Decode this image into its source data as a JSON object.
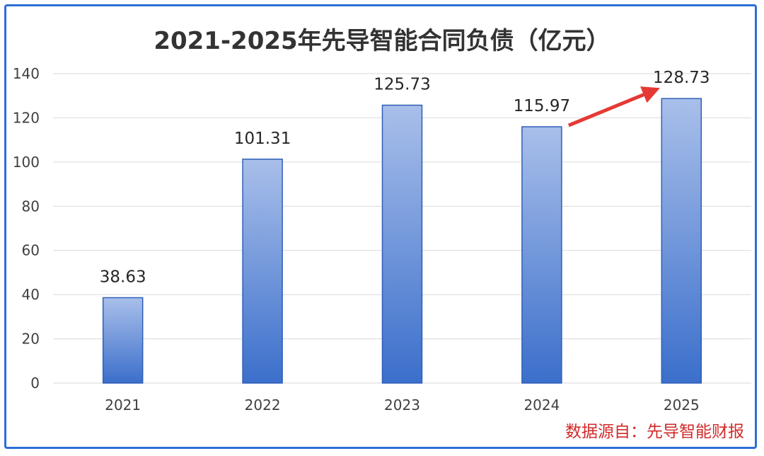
{
  "chart_data": {
    "type": "bar",
    "title": "2021-2025年先导智能合同负债（亿元）",
    "categories": [
      "2021",
      "2022",
      "2023",
      "2024",
      "2025"
    ],
    "values": [
      38.63,
      101.31,
      125.73,
      115.97,
      128.73
    ],
    "data_labels": [
      "38.63",
      "101.31",
      "125.73",
      "115.97",
      "128.73"
    ],
    "ylim": [
      0,
      140
    ],
    "yticks": [
      0,
      20,
      40,
      60,
      80,
      100,
      120,
      140
    ],
    "xlabel": "",
    "ylabel": "",
    "grid": true,
    "legend": "none",
    "annotation": {
      "type": "arrow",
      "from": "2024",
      "to": "2025",
      "color": "#e53935"
    }
  },
  "source_note": "数据源自：先导智能财报",
  "colors": {
    "bar_top": "#a9bfea",
    "bar_bottom": "#3b6fcb",
    "bar_edge": "#2f5fb8",
    "grid": "#d9d9d9",
    "frame": "#2c6fd6",
    "arrow": "#e53935"
  }
}
